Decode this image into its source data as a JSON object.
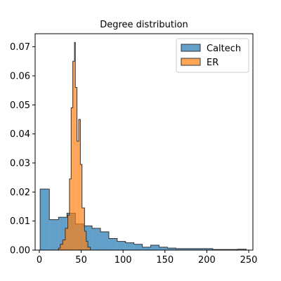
{
  "chart_data": {
    "type": "histogram",
    "title": "Degree distribution",
    "xlabel": "",
    "ylabel": "",
    "xlim": [
      -5,
      255
    ],
    "ylim": [
      0,
      0.0745
    ],
    "xticks": [
      0,
      50,
      100,
      150,
      200,
      250
    ],
    "yticks": [
      0.0,
      0.01,
      0.02,
      0.03,
      0.04,
      0.05,
      0.06,
      0.07
    ],
    "ytick_labels": [
      "0.00",
      "0.01",
      "0.02",
      "0.03",
      "0.04",
      "0.05",
      "0.06",
      "0.07"
    ],
    "legend_position": "upper-right",
    "series": [
      {
        "name": "Caltech",
        "color": "#1f77b4",
        "bins": [
          {
            "x0": 1,
            "x1": 12,
            "y": 0.021
          },
          {
            "x0": 12,
            "x1": 23,
            "y": 0.0105
          },
          {
            "x0": 23,
            "x1": 33,
            "y": 0.0113
          },
          {
            "x0": 33,
            "x1": 43,
            "y": 0.0127
          },
          {
            "x0": 43,
            "x1": 53,
            "y": 0.009
          },
          {
            "x0": 53,
            "x1": 63,
            "y": 0.0083
          },
          {
            "x0": 63,
            "x1": 73,
            "y": 0.0075
          },
          {
            "x0": 73,
            "x1": 83,
            "y": 0.0063
          },
          {
            "x0": 83,
            "x1": 93,
            "y": 0.004
          },
          {
            "x0": 93,
            "x1": 103,
            "y": 0.003
          },
          {
            "x0": 103,
            "x1": 113,
            "y": 0.0025
          },
          {
            "x0": 113,
            "x1": 123,
            "y": 0.002
          },
          {
            "x0": 123,
            "x1": 133,
            "y": 0.001
          },
          {
            "x0": 133,
            "x1": 143,
            "y": 0.0017
          },
          {
            "x0": 143,
            "x1": 153,
            "y": 0.001
          },
          {
            "x0": 153,
            "x1": 163,
            "y": 0.0007
          },
          {
            "x0": 163,
            "x1": 207,
            "y": 0.0005
          },
          {
            "x0": 207,
            "x1": 237,
            "y": 0.0002
          },
          {
            "x0": 237,
            "x1": 247,
            "y": 0.0003
          }
        ]
      },
      {
        "name": "ER",
        "color": "#ff7f0e",
        "bins": [
          {
            "x0": 23,
            "x1": 25,
            "y": 0.0007
          },
          {
            "x0": 25,
            "x1": 28,
            "y": 0.002
          },
          {
            "x0": 28,
            "x1": 31,
            "y": 0.0035
          },
          {
            "x0": 31,
            "x1": 34,
            "y": 0.0075
          },
          {
            "x0": 34,
            "x1": 36,
            "y": 0.012
          },
          {
            "x0": 36,
            "x1": 38,
            "y": 0.0245
          },
          {
            "x0": 38,
            "x1": 40,
            "y": 0.049
          },
          {
            "x0": 40,
            "x1": 42,
            "y": 0.065
          },
          {
            "x0": 42,
            "x1": 43,
            "y": 0.0715
          },
          {
            "x0": 43,
            "x1": 45,
            "y": 0.056
          },
          {
            "x0": 45,
            "x1": 47,
            "y": 0.0375
          },
          {
            "x0": 47,
            "x1": 49,
            "y": 0.045
          },
          {
            "x0": 49,
            "x1": 51,
            "y": 0.0295
          },
          {
            "x0": 51,
            "x1": 54,
            "y": 0.0145
          },
          {
            "x0": 54,
            "x1": 56,
            "y": 0.0065
          },
          {
            "x0": 56,
            "x1": 58,
            "y": 0.003
          },
          {
            "x0": 58,
            "x1": 61,
            "y": 0.001
          }
        ]
      }
    ]
  }
}
